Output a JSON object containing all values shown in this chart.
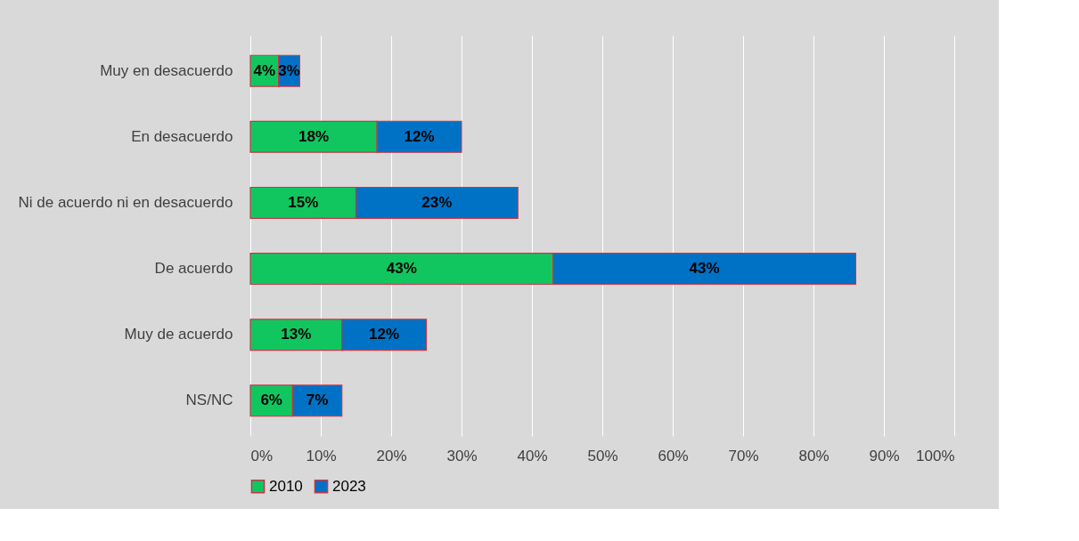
{
  "chart_data": {
    "type": "bar",
    "orientation": "horizontal",
    "stacked": true,
    "categories": [
      "Muy en desacuerdo",
      "En desacuerdo",
      "Ni de acuerdo ni en desacuerdo",
      "De acuerdo",
      "Muy de acuerdo",
      "NS/NC"
    ],
    "series": [
      {
        "name": "2010",
        "color": "#12c65f",
        "values": [
          4,
          18,
          15,
          43,
          13,
          6
        ],
        "value_labels": [
          "4%",
          "18%",
          "15%",
          "43%",
          "13%",
          "6%"
        ]
      },
      {
        "name": "2023",
        "color": "#0072c6",
        "values": [
          3,
          12,
          23,
          43,
          12,
          7
        ],
        "value_labels": [
          "3%",
          "12%",
          "23%",
          "43%",
          "12%",
          "7%"
        ]
      }
    ],
    "xlim": [
      0,
      100
    ],
    "xticks": [
      {
        "value": 0,
        "label": "0%"
      },
      {
        "value": 10,
        "label": "10%"
      },
      {
        "value": 20,
        "label": "20%"
      },
      {
        "value": 30,
        "label": "30%"
      },
      {
        "value": 40,
        "label": "40%"
      },
      {
        "value": 50,
        "label": "50%"
      },
      {
        "value": 60,
        "label": "60%"
      },
      {
        "value": 70,
        "label": "70%"
      },
      {
        "value": 80,
        "label": "80%"
      },
      {
        "value": 90,
        "label": "90%"
      },
      {
        "value": 100,
        "label": "100%"
      }
    ],
    "grid": "x",
    "legend": "bottom"
  }
}
